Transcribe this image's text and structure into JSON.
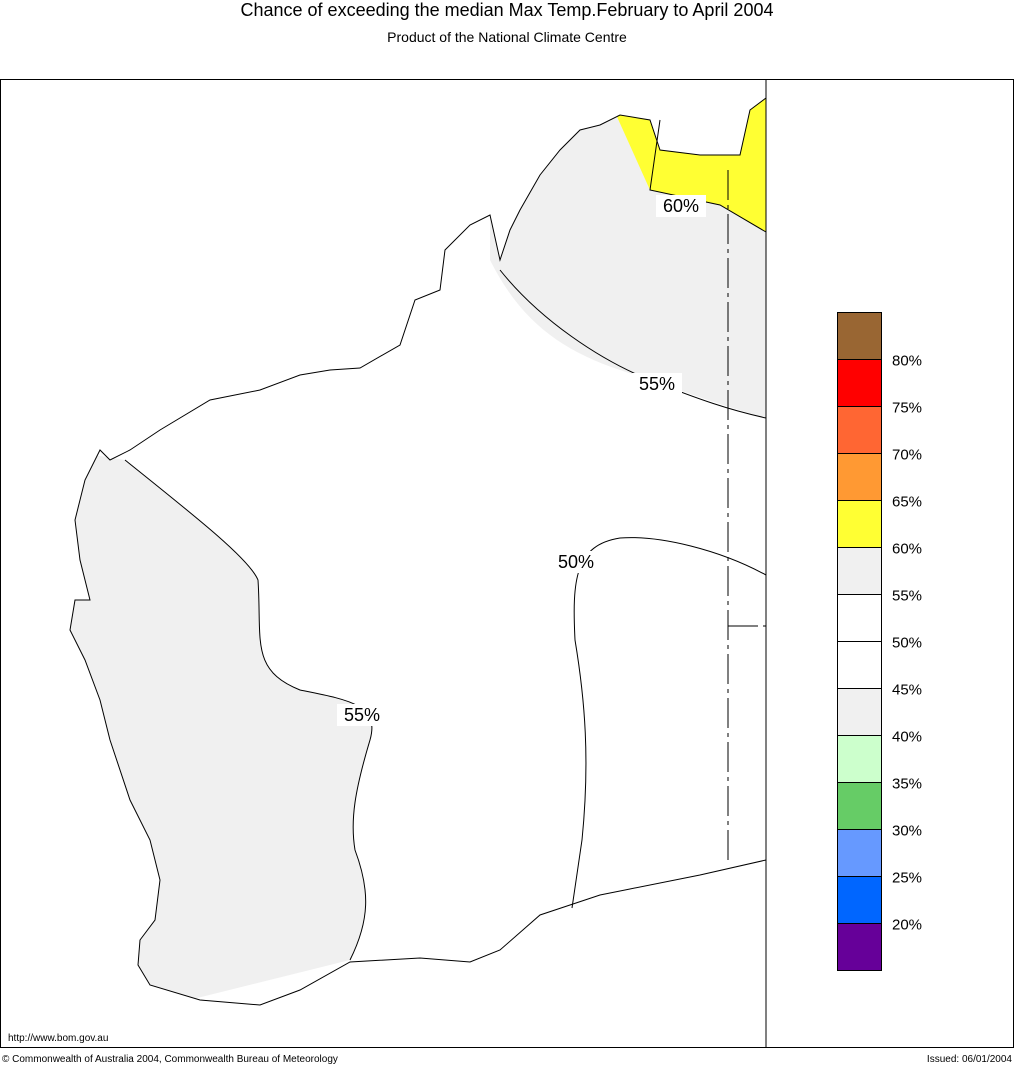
{
  "header": {
    "title": "Chance of exceeding the median Max Temp.February to April 2004",
    "subtitle": "Product of the National Climate Centre"
  },
  "map": {
    "contour_labels": [
      "60%",
      "55%",
      "50%",
      "55%"
    ]
  },
  "legend": {
    "colors": [
      "#996633",
      "#ff0000",
      "#ff6633",
      "#ff9933",
      "#ffff33",
      "#f0f0f0",
      "#ffffff",
      "#ffffff",
      "#f0f0f0",
      "#ccffcc",
      "#66cc66",
      "#6699ff",
      "#0066ff",
      "#660099"
    ],
    "labels": [
      "80%",
      "75%",
      "70%",
      "65%",
      "60%",
      "55%",
      "50%",
      "45%",
      "40%",
      "35%",
      "30%",
      "25%",
      "20%"
    ]
  },
  "footer": {
    "url": "http://www.bom.gov.au",
    "copyright": "© Commonwealth of Australia 2004, Commonwealth Bureau of Meteorology",
    "issued": "Issued: 06/01/2004"
  }
}
